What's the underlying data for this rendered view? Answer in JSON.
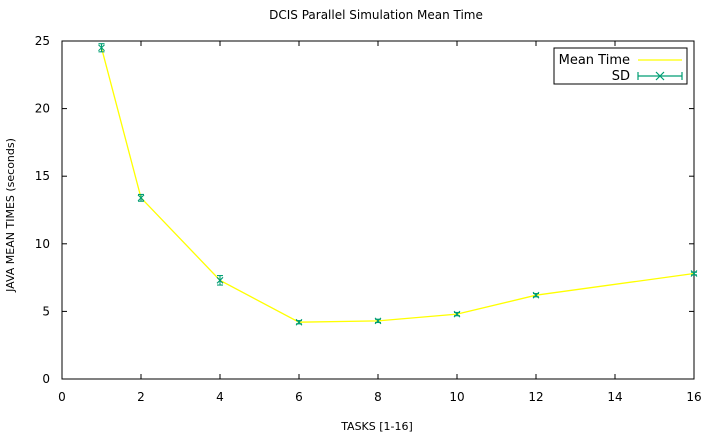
{
  "chart_data": {
    "type": "line",
    "title": "DCIS Parallel Simulation Mean Time",
    "xlabel": "TASKS [1-16]",
    "ylabel": "JAVA MEAN TIMES (seconds)",
    "xlim": [
      0,
      16
    ],
    "ylim": [
      0,
      25
    ],
    "x_ticks": [
      0,
      2,
      4,
      6,
      8,
      10,
      12,
      14,
      16
    ],
    "y_ticks": [
      0,
      5,
      10,
      15,
      20,
      25
    ],
    "grid": false,
    "legend_position": "top-right",
    "series": [
      {
        "name": "Mean Time",
        "color": "#ffff00",
        "x": [
          1,
          2,
          4,
          6,
          8,
          10,
          12,
          16
        ],
        "values": [
          24.5,
          13.4,
          7.3,
          4.2,
          4.3,
          4.8,
          6.2,
          7.8
        ]
      },
      {
        "name": "SD",
        "color": "#009e73",
        "x": [
          1,
          2,
          4,
          6,
          8,
          10,
          12,
          16
        ],
        "values": [
          24.5,
          13.4,
          7.3,
          4.2,
          4.3,
          4.8,
          6.2,
          7.8
        ],
        "error": [
          0.3,
          0.25,
          0.35,
          0.12,
          0.12,
          0.12,
          0.12,
          0.1
        ]
      }
    ]
  }
}
